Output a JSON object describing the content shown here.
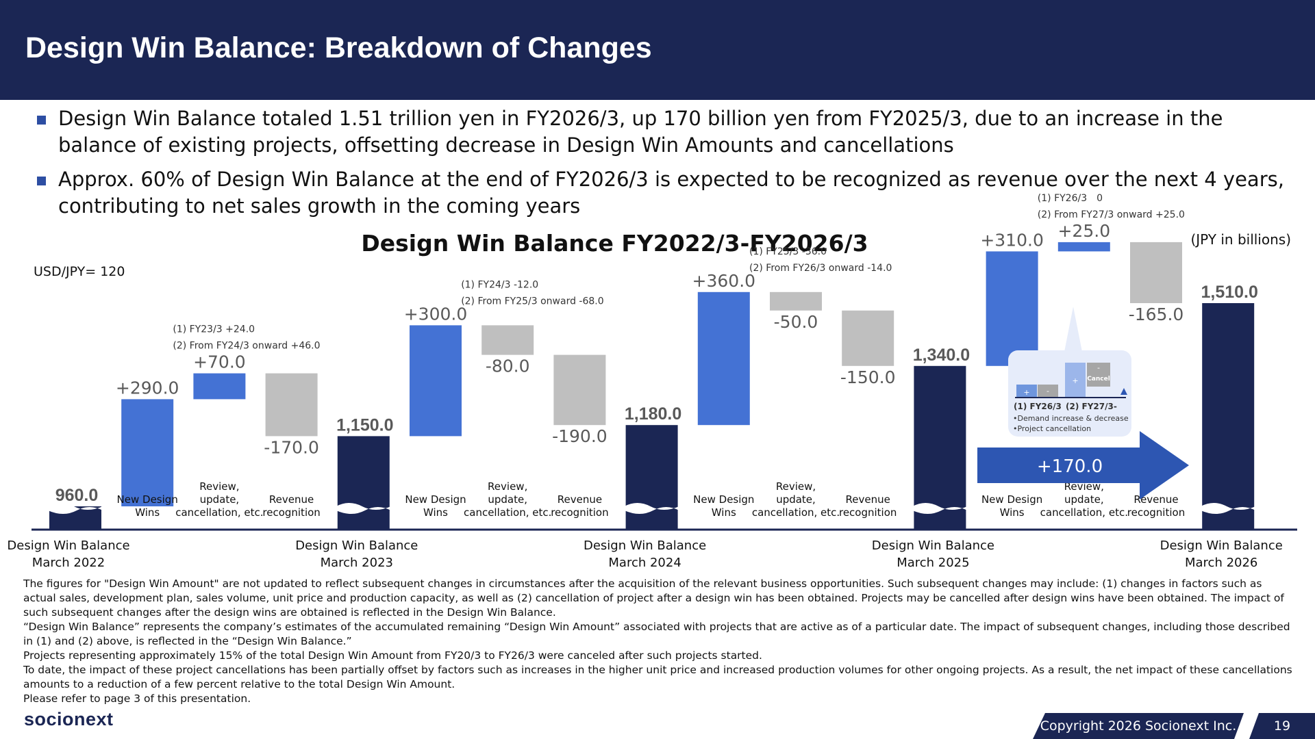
{
  "header": {
    "title": "Design Win Balance: Breakdown of Changes"
  },
  "bullets": [
    "Design Win Balance totaled 1.51 trillion yen in FY2026/3, up 170 billion yen from FY2025/3, due to an increase in the balance of existing projects, offsetting decrease in Design Win Amounts and cancellations",
    "Approx. 60% of Design Win Balance at the end of FY2026/3 is expected to be recognized as revenue over the next 4 years, contributing to net sales growth in the coming years"
  ],
  "chart": {
    "unit": "(JPY in billions)",
    "fx": "USD/JPY= 120",
    "arrow_label": "+170.0",
    "inset": {
      "lbl1": "(1) FY26/3",
      "lbl2": "(2) FY27/3-",
      "note1": "•Demand increase & decrease",
      "note2": "•Project cancellation",
      "plus": "+",
      "minus": "-",
      "cancel": "Cancel"
    }
  },
  "chart_data": {
    "type": "bar",
    "title": "Design Win Balance FY2022/3-FY2026/3",
    "subtype": "waterfall",
    "categories": [
      "Design Win Balance March 2022",
      "New Design Wins",
      "Review, update, cancellation, etc.",
      "Revenue recognition",
      "Design Win Balance March 2023",
      "New Design Wins",
      "Review, update, cancellation, etc.",
      "Revenue recognition",
      "Design Win Balance March 2024",
      "New Design Wins",
      "Review, update, cancellation, etc.",
      "Revenue recognition",
      "Design Win Balance March 2025",
      "New Design Wins",
      "Review, update, cancellation, etc.",
      "Revenue recognition",
      "Design Win Balance March 2026"
    ],
    "bars": [
      {
        "kind": "total",
        "value": 960.0,
        "label": "960.0",
        "cat1": "Design Win Balance",
        "cat2": "March 2022"
      },
      {
        "kind": "delta",
        "value": 290.0,
        "label": "+290.0",
        "cat": [
          "New Design",
          "Wins"
        ]
      },
      {
        "kind": "delta",
        "value": 70.0,
        "label": "+70.0",
        "cat": [
          "Review,",
          "update,",
          "cancellation, etc."
        ],
        "note": [
          "(1) FY23/3 +24.0",
          "(2) From FY24/3 onward +46.0"
        ]
      },
      {
        "kind": "delta",
        "value": -170.0,
        "label": "-170.0",
        "cat": [
          "Revenue",
          "recognition"
        ]
      },
      {
        "kind": "total",
        "value": 1150.0,
        "label": "1,150.0",
        "cat1": "Design Win Balance",
        "cat2": "March 2023"
      },
      {
        "kind": "delta",
        "value": 300.0,
        "label": "+300.0",
        "cat": [
          "New Design",
          "Wins"
        ]
      },
      {
        "kind": "delta",
        "value": -80.0,
        "label": "-80.0",
        "cat": [
          "Review,",
          "update,",
          "cancellation, etc."
        ],
        "note": [
          "(1) FY24/3 -12.0",
          "(2) From FY25/3 onward -68.0"
        ]
      },
      {
        "kind": "delta",
        "value": -190.0,
        "label": "-190.0",
        "cat": [
          "Revenue",
          "recognition"
        ]
      },
      {
        "kind": "total",
        "value": 1180.0,
        "label": "1,180.0",
        "cat1": "Design Win Balance",
        "cat2": "March 2024"
      },
      {
        "kind": "delta",
        "value": 360.0,
        "label": "+360.0",
        "cat": [
          "New Design",
          "Wins"
        ]
      },
      {
        "kind": "delta",
        "value": -50.0,
        "label": "-50.0",
        "cat": [
          "Review,",
          "update,",
          "cancellation, etc."
        ],
        "note": [
          "(1) FY25/3 -36.0",
          "(2) From FY26/3 onward -14.0"
        ]
      },
      {
        "kind": "delta",
        "value": -150.0,
        "label": "-150.0",
        "cat": [
          "Revenue",
          "recognition"
        ]
      },
      {
        "kind": "total",
        "value": 1340.0,
        "label": "1,340.0",
        "cat1": "Design Win Balance",
        "cat2": "March 2025"
      },
      {
        "kind": "delta",
        "value": 310.0,
        "label": "+310.0",
        "cat": [
          "New Design",
          "Wins"
        ]
      },
      {
        "kind": "delta",
        "value": 25.0,
        "label": "+25.0",
        "cat": [
          "Review,",
          "update,",
          "cancellation, etc."
        ],
        "note": [
          "(1) FY26/3　0",
          "(2) From FY27/3 onward +25.0"
        ]
      },
      {
        "kind": "delta",
        "value": -165.0,
        "label": "-165.0",
        "cat": [
          "Revenue",
          "recognition"
        ]
      },
      {
        "kind": "total",
        "value": 1510.0,
        "label": "1,510.0",
        "cat1": "Design Win Balance",
        "cat2": "March 2026"
      }
    ],
    "colors": {
      "total": "#1b2654",
      "increase": "#4472d4",
      "decrease": "#bfbfbf",
      "arrow": "#2d56b2"
    }
  },
  "notes": [
    "The figures for \"Design Win Amount\" are not updated to reflect subsequent changes in circumstances after the acquisition of the relevant business opportunities. Such subsequent changes may include: (1) changes in factors such as actual sales, development plan, sales volume, unit price and production capacity, as well as (2) cancellation of project after a design win has been obtained. Projects may be cancelled after design wins have been obtained. The impact of such subsequent changes after the design wins are obtained is reflected in the Design Win Balance.",
    "“Design Win Balance” represents the company’s estimates of the accumulated remaining “Design Win Amount” associated with projects that are active as of a particular date. The impact of subsequent changes, including those described in (1) and (2) above, is reflected in the “Design Win Balance.”",
    "Projects representing approximately 15% of the total Design Win Amount from FY20/3 to FY26/3 were canceled after such projects started.",
    "To date, the impact of these project cancellations has been partially offset by factors such as increases in the higher unit price and increased production volumes for other ongoing projects. As a result, the net impact of these cancellations amounts to a reduction of a few percent relative to the total Design Win Amount.",
    "Please refer to page 3 of this presentation."
  ],
  "footer": {
    "logo": "socionext",
    "copyright": "Copyright 2026 Socionext Inc.",
    "page": "19"
  }
}
